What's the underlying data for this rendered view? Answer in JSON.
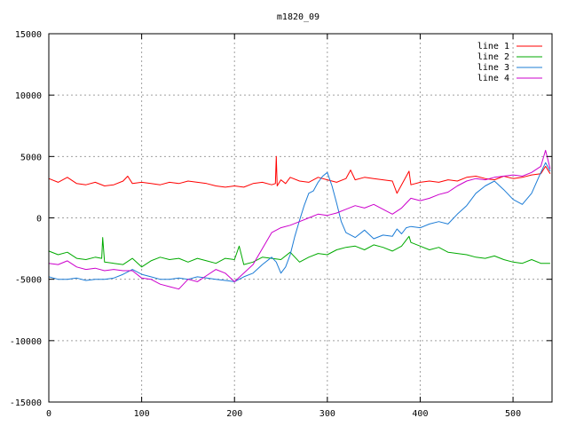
{
  "chart_data": {
    "type": "line",
    "title": "m1820_09",
    "xlabel": "",
    "ylabel": "",
    "xlim": [
      0,
      542
    ],
    "ylim": [
      -15000,
      15000
    ],
    "x_ticks": [
      0,
      100,
      200,
      300,
      400,
      500
    ],
    "y_ticks": [
      -15000,
      -10000,
      -5000,
      0,
      5000,
      10000,
      15000
    ],
    "grid": true,
    "legend_position": "top-right",
    "series": [
      {
        "name": "line 1",
        "color": "#ff0000",
        "x": [
          0,
          10,
          20,
          30,
          40,
          50,
          60,
          70,
          80,
          85,
          90,
          100,
          110,
          120,
          130,
          140,
          150,
          160,
          170,
          180,
          190,
          200,
          210,
          220,
          230,
          240,
          244,
          245,
          246,
          250,
          255,
          260,
          270,
          280,
          290,
          300,
          310,
          320,
          325,
          330,
          340,
          350,
          360,
          370,
          375,
          380,
          388,
          390,
          400,
          410,
          420,
          430,
          440,
          450,
          460,
          470,
          480,
          490,
          500,
          510,
          520,
          530,
          535,
          540
        ],
        "y": [
          3200,
          2900,
          3300,
          2800,
          2700,
          2900,
          2600,
          2700,
          3000,
          3400,
          2800,
          2900,
          2800,
          2700,
          2900,
          2800,
          3000,
          2900,
          2800,
          2600,
          2500,
          2600,
          2500,
          2800,
          2900,
          2700,
          2800,
          5000,
          2600,
          3100,
          2800,
          3300,
          3000,
          2900,
          3300,
          3100,
          2900,
          3200,
          3900,
          3100,
          3300,
          3200,
          3100,
          3000,
          2000,
          2700,
          3800,
          2700,
          2900,
          3000,
          2900,
          3100,
          3000,
          3300,
          3400,
          3200,
          3100,
          3400,
          3200,
          3300,
          3500,
          3600,
          4200,
          3600
        ]
      },
      {
        "name": "line 2",
        "color": "#00aa00",
        "x": [
          0,
          10,
          20,
          30,
          40,
          50,
          57,
          58,
          60,
          70,
          80,
          90,
          100,
          110,
          120,
          130,
          140,
          150,
          160,
          170,
          180,
          190,
          200,
          205,
          210,
          220,
          230,
          240,
          250,
          260,
          270,
          280,
          290,
          300,
          310,
          320,
          330,
          340,
          350,
          360,
          370,
          380,
          388,
          390,
          400,
          410,
          420,
          430,
          440,
          450,
          460,
          470,
          480,
          490,
          500,
          510,
          520,
          530,
          540
        ],
        "y": [
          -2700,
          -3000,
          -2800,
          -3300,
          -3400,
          -3200,
          -3300,
          -1600,
          -3600,
          -3700,
          -3800,
          -3300,
          -4000,
          -3500,
          -3200,
          -3400,
          -3300,
          -3600,
          -3300,
          -3500,
          -3700,
          -3300,
          -3400,
          -2300,
          -3800,
          -3600,
          -3200,
          -3300,
          -3400,
          -2800,
          -3600,
          -3200,
          -2900,
          -3000,
          -2600,
          -2400,
          -2300,
          -2600,
          -2200,
          -2400,
          -2700,
          -2300,
          -1500,
          -2000,
          -2300,
          -2600,
          -2400,
          -2800,
          -2900,
          -3000,
          -3200,
          -3300,
          -3100,
          -3400,
          -3600,
          -3700,
          -3400,
          -3700,
          -3700
        ]
      },
      {
        "name": "line 3",
        "color": "#1c7cd6",
        "x": [
          0,
          10,
          20,
          30,
          40,
          50,
          60,
          70,
          80,
          90,
          100,
          110,
          120,
          130,
          140,
          150,
          160,
          170,
          180,
          190,
          200,
          210,
          220,
          230,
          240,
          245,
          250,
          255,
          260,
          265,
          270,
          275,
          280,
          285,
          290,
          295,
          300,
          305,
          310,
          315,
          320,
          330,
          340,
          350,
          360,
          370,
          375,
          380,
          385,
          390,
          400,
          410,
          420,
          430,
          440,
          450,
          460,
          470,
          480,
          490,
          500,
          510,
          520,
          530,
          535,
          540
        ],
        "y": [
          -4800,
          -5000,
          -5000,
          -4900,
          -5100,
          -5000,
          -5000,
          -4900,
          -4600,
          -4200,
          -4600,
          -4800,
          -5000,
          -5000,
          -4900,
          -5000,
          -4800,
          -4900,
          -5000,
          -5100,
          -5200,
          -4800,
          -4500,
          -3800,
          -3200,
          -3600,
          -4500,
          -4000,
          -3000,
          -1500,
          -200,
          1000,
          2000,
          2200,
          2900,
          3400,
          3700,
          2600,
          1200,
          -300,
          -1200,
          -1600,
          -1000,
          -1700,
          -1400,
          -1500,
          -900,
          -1300,
          -800,
          -700,
          -800,
          -500,
          -300,
          -500,
          300,
          1000,
          2000,
          2600,
          3000,
          2300,
          1500,
          1100,
          2000,
          3700,
          4500,
          3800
        ]
      },
      {
        "name": "line 4",
        "color": "#cc00cc",
        "x": [
          0,
          10,
          20,
          30,
          40,
          50,
          60,
          70,
          80,
          90,
          100,
          110,
          120,
          130,
          140,
          150,
          160,
          170,
          180,
          190,
          200,
          210,
          220,
          230,
          240,
          250,
          260,
          270,
          280,
          290,
          300,
          310,
          320,
          330,
          340,
          350,
          360,
          370,
          380,
          390,
          400,
          410,
          420,
          430,
          440,
          450,
          460,
          470,
          480,
          490,
          500,
          510,
          520,
          530,
          535,
          540
        ],
        "y": [
          -3700,
          -3800,
          -3500,
          -4000,
          -4200,
          -4100,
          -4300,
          -4200,
          -4300,
          -4300,
          -4900,
          -5000,
          -5400,
          -5600,
          -5800,
          -5000,
          -5200,
          -4700,
          -4200,
          -4500,
          -5200,
          -4500,
          -3800,
          -2500,
          -1200,
          -800,
          -600,
          -300,
          0,
          300,
          200,
          400,
          700,
          1000,
          800,
          1100,
          700,
          300,
          800,
          1600,
          1400,
          1600,
          1900,
          2100,
          2600,
          3000,
          3200,
          3100,
          3300,
          3400,
          3500,
          3400,
          3700,
          4200,
          5500,
          4000
        ]
      }
    ]
  }
}
